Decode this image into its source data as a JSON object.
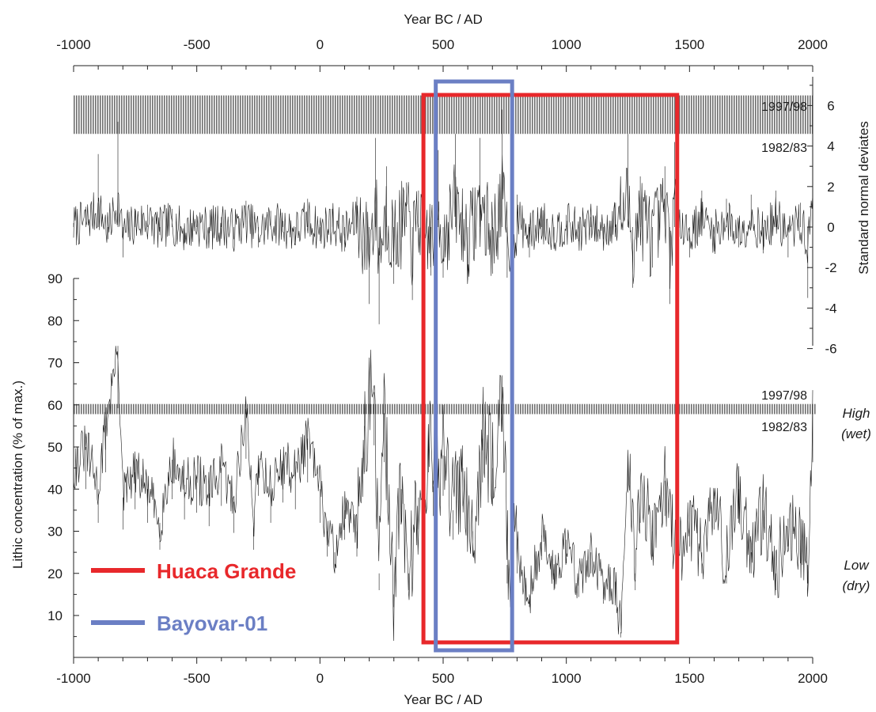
{
  "chart_data": [
    {
      "id": "top",
      "type": "line",
      "x_axis_title": "Year BC / AD",
      "y_axis_title": "Standard normal deviates",
      "xlim": [
        -1000,
        2000
      ],
      "ylim": [
        -6,
        7
      ],
      "x_ticks": [
        "-1000",
        "-500",
        "0",
        "500",
        "1000",
        "1500",
        "2000"
      ],
      "y_ticks": [
        "-6",
        "-4",
        "-2",
        "0",
        "2",
        "4",
        "6"
      ],
      "band": {
        "upper_label": "1997/98",
        "lower_label": "1982/83",
        "y_range": [
          4.6,
          6.5
        ]
      },
      "series": [
        {
          "values_note": "",
          "points": [
            [
              -1000,
              0.2
            ],
            [
              -950,
              1.0
            ],
            [
              -900,
              3.6
            ],
            [
              -860,
              -0.6
            ],
            [
              -820,
              5.2
            ],
            [
              -800,
              -1.5
            ],
            [
              -750,
              0.8
            ],
            [
              -700,
              1.1
            ],
            [
              -650,
              -0.4
            ],
            [
              -600,
              0.9
            ],
            [
              -550,
              -0.8
            ],
            [
              -500,
              0.6
            ],
            [
              -450,
              -0.3
            ],
            [
              -400,
              0.5
            ],
            [
              -350,
              -0.6
            ],
            [
              -300,
              1.3
            ],
            [
              -250,
              -1.0
            ],
            [
              -200,
              0.8
            ],
            [
              -150,
              0.3
            ],
            [
              -100,
              -0.9
            ],
            [
              -50,
              1.4
            ],
            [
              0,
              -0.7
            ],
            [
              50,
              0.9
            ],
            [
              100,
              -1.2
            ],
            [
              150,
              1.5
            ],
            [
              200,
              -3.8
            ],
            [
              225,
              4.4
            ],
            [
              240,
              -4.8
            ],
            [
              270,
              3.0
            ],
            [
              300,
              -2.8
            ],
            [
              350,
              2.2
            ],
            [
              375,
              -3.6
            ],
            [
              400,
              1.8
            ],
            [
              450,
              -2.4
            ],
            [
              480,
              3.8
            ],
            [
              500,
              -2.5
            ],
            [
              550,
              4.6
            ],
            [
              600,
              -2.6
            ],
            [
              650,
              4.4
            ],
            [
              700,
              -2.3
            ],
            [
              740,
              5.8
            ],
            [
              760,
              -2.5
            ],
            [
              800,
              1.6
            ],
            [
              850,
              -1.5
            ],
            [
              900,
              1.0
            ],
            [
              950,
              -0.8
            ],
            [
              1000,
              0.6
            ],
            [
              1050,
              -0.7
            ],
            [
              1100,
              0.5
            ],
            [
              1150,
              -0.6
            ],
            [
              1200,
              1.2
            ],
            [
              1250,
              4.6
            ],
            [
              1270,
              -3.0
            ],
            [
              1300,
              2.5
            ],
            [
              1350,
              -2.0
            ],
            [
              1400,
              3.0
            ],
            [
              1420,
              -3.8
            ],
            [
              1440,
              4.2
            ],
            [
              1500,
              -1.5
            ],
            [
              1550,
              1.8
            ],
            [
              1600,
              -1.2
            ],
            [
              1650,
              1.4
            ],
            [
              1700,
              -1.0
            ],
            [
              1750,
              1.6
            ],
            [
              1800,
              -1.3
            ],
            [
              1850,
              1.8
            ],
            [
              1900,
              -1.5
            ],
            [
              1950,
              1.2
            ],
            [
              1980,
              -3.5
            ],
            [
              2000,
              4.2
            ]
          ]
        }
      ]
    },
    {
      "id": "bottom",
      "type": "line",
      "x_axis_title": "Year BC / AD",
      "y_axis_title": "Lithic concentration (% of max.)",
      "xlim": [
        -1000,
        2000
      ],
      "ylim": [
        0,
        90
      ],
      "x_ticks": [
        "-1000",
        "-500",
        "0",
        "500",
        "1000",
        "1500",
        "2000"
      ],
      "y_ticks": [
        "10",
        "20",
        "30",
        "40",
        "50",
        "60",
        "70",
        "80",
        "90"
      ],
      "band": {
        "upper_label": "1997/98",
        "lower_label": "1982/83",
        "y_range": [
          57.8,
          60.2
        ]
      },
      "annotations": {
        "high": "High",
        "high_sub": "(wet)",
        "low": "Low",
        "low_sub": "(dry)"
      },
      "series": [
        {
          "points": [
            [
              -1000,
              45
            ],
            [
              -950,
              50
            ],
            [
              -900,
              40
            ],
            [
              -870,
              55
            ],
            [
              -820,
              74
            ],
            [
              -800,
              38
            ],
            [
              -750,
              44
            ],
            [
              -700,
              40
            ],
            [
              -650,
              32
            ],
            [
              -600,
              47
            ],
            [
              -550,
              41
            ],
            [
              -500,
              43
            ],
            [
              -450,
              39
            ],
            [
              -400,
              45
            ],
            [
              -350,
              37
            ],
            [
              -300,
              59
            ],
            [
              -270,
              32
            ],
            [
              -250,
              48
            ],
            [
              -200,
              40
            ],
            [
              -150,
              46
            ],
            [
              -100,
              44
            ],
            [
              -50,
              52
            ],
            [
              0,
              40
            ],
            [
              30,
              30
            ],
            [
              60,
              25
            ],
            [
              100,
              35
            ],
            [
              150,
              30
            ],
            [
              180,
              55
            ],
            [
              220,
              63
            ],
            [
              240,
              20
            ],
            [
              260,
              58
            ],
            [
              300,
              15
            ],
            [
              330,
              40
            ],
            [
              360,
              20
            ],
            [
              400,
              38
            ],
            [
              420,
              30
            ],
            [
              440,
              55
            ],
            [
              460,
              42
            ],
            [
              500,
              48
            ],
            [
              540,
              35
            ],
            [
              580,
              45
            ],
            [
              620,
              30
            ],
            [
              660,
              52
            ],
            [
              700,
              45
            ],
            [
              740,
              67
            ],
            [
              760,
              22
            ],
            [
              800,
              25
            ],
            [
              850,
              15
            ],
            [
              900,
              29
            ],
            [
              950,
              20
            ],
            [
              1000,
              28
            ],
            [
              1050,
              18
            ],
            [
              1100,
              25
            ],
            [
              1150,
              16
            ],
            [
              1200,
              18
            ],
            [
              1220,
              6
            ],
            [
              1250,
              49
            ],
            [
              1280,
              20
            ],
            [
              1300,
              40
            ],
            [
              1350,
              30
            ],
            [
              1400,
              42
            ],
            [
              1450,
              22
            ],
            [
              1500,
              33
            ],
            [
              1550,
              25
            ],
            [
              1600,
              38
            ],
            [
              1650,
              22
            ],
            [
              1700,
              40
            ],
            [
              1750,
              25
            ],
            [
              1800,
              35
            ],
            [
              1850,
              20
            ],
            [
              1900,
              33
            ],
            [
              1950,
              28
            ],
            [
              1980,
              22
            ],
            [
              2000,
              58
            ]
          ]
        }
      ]
    }
  ],
  "legend": [
    {
      "label": "Huaca Grande",
      "color": "#e8282b"
    },
    {
      "label": "Bayovar-01",
      "color": "#6b7fc4"
    }
  ],
  "highlight_ranges": [
    {
      "name": "Huaca Grande",
      "x_range": [
        420,
        1450
      ]
    },
    {
      "name": "Bayovar-01",
      "x_range": [
        470,
        780
      ]
    }
  ]
}
